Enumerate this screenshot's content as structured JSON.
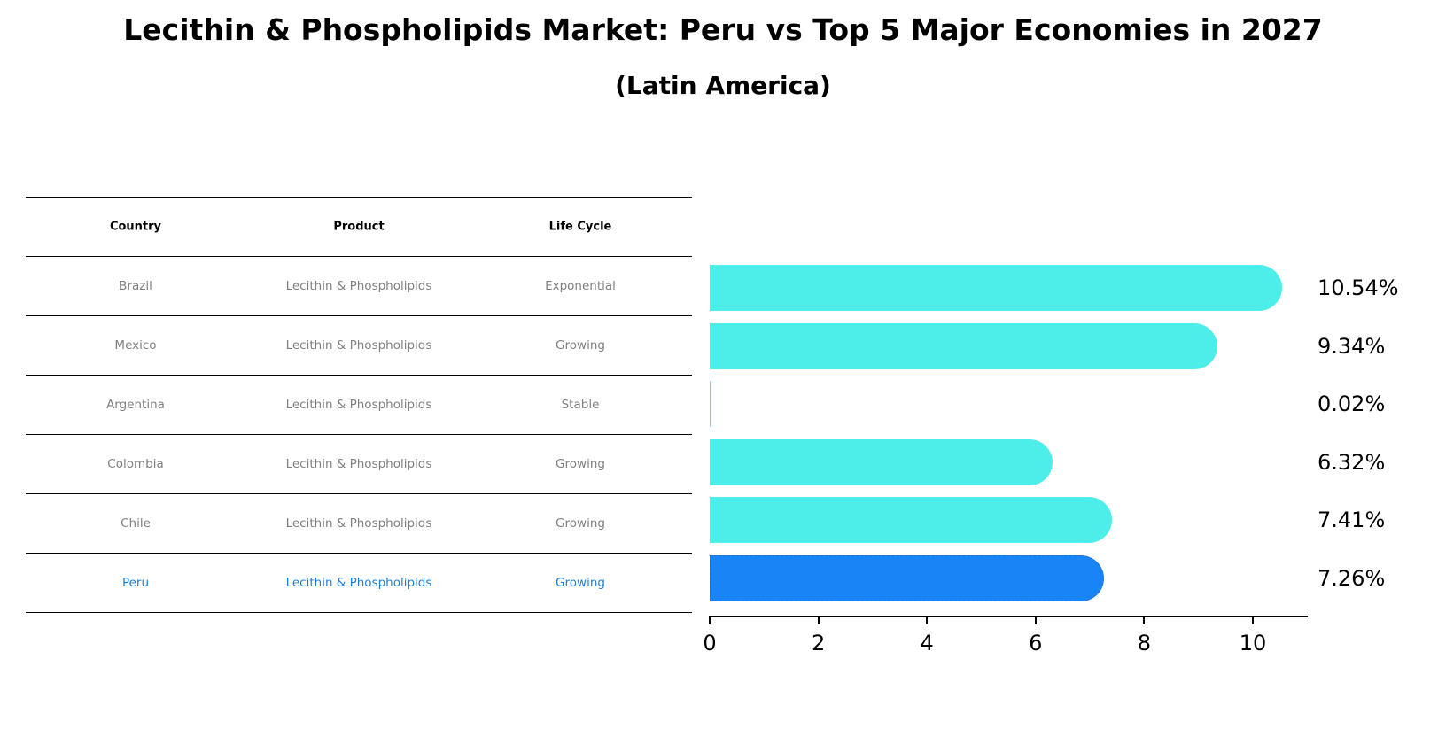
{
  "title": "Lecithin & Phospholipids Market: Peru vs Top 5 Major Economies in 2027",
  "subtitle": "(Latin America)",
  "table": {
    "headers": [
      "Country",
      "Product",
      "Life Cycle"
    ],
    "rows": [
      [
        "Brazil",
        "Lecithin & Phospholipids",
        "Exponential"
      ],
      [
        "Mexico",
        "Lecithin & Phospholipids",
        "Growing"
      ],
      [
        "Argentina",
        "Lecithin & Phospholipids",
        "Stable"
      ],
      [
        "Colombia",
        "Lecithin & Phospholipids",
        "Growing"
      ],
      [
        "Chile",
        "Lecithin & Phospholipids",
        "Growing"
      ],
      [
        "Peru",
        "Lecithin & Phospholipids",
        "Growing"
      ]
    ],
    "highlight_row": 5
  },
  "colors": {
    "bar": "#4deeea",
    "highlight_bar": "#1984f5",
    "highlight_text": "#1f7ed6",
    "text_muted": "#808080"
  },
  "chart_data": {
    "type": "bar",
    "orientation": "horizontal",
    "title": "Lecithin & Phospholipids Market: Peru vs Top 5 Major Economies in 2027",
    "subtitle": "(Latin America)",
    "categories": [
      "Brazil",
      "Mexico",
      "Argentina",
      "Colombia",
      "Chile",
      "Peru"
    ],
    "values": [
      10.54,
      9.34,
      0.02,
      6.32,
      7.41,
      7.26
    ],
    "value_labels": [
      "10.54%",
      "9.34%",
      "0.02%",
      "6.32%",
      "7.41%",
      "7.26%"
    ],
    "highlight": "Peru",
    "xlabel": "",
    "ylabel": "",
    "xticks": [
      "0",
      "2",
      "4",
      "6",
      "8",
      "10"
    ],
    "xlim": [
      0,
      11.07
    ],
    "grid": false,
    "legend": null
  }
}
